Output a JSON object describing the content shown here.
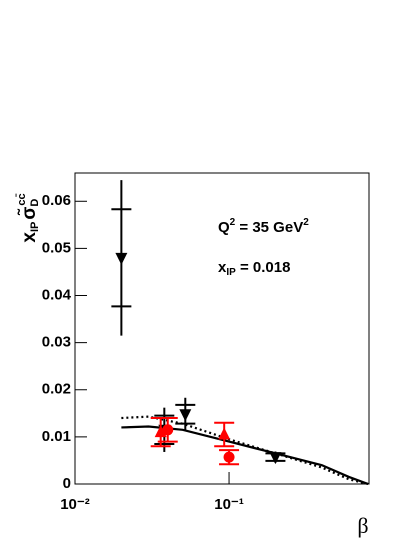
{
  "chart_data": {
    "type": "scatter",
    "xlabel": "β",
    "ylabel": [
      "x",
      "IP",
      "σ̃",
      "D",
      "cc̄"
    ],
    "annotations": [
      [
        "Q",
        "2",
        " = 35 GeV",
        "2"
      ],
      [
        "x",
        "IP",
        " = 0.018"
      ]
    ],
    "log_x": true,
    "xlim": [
      0.01,
      0.81
    ],
    "xticks": [
      {
        "value": 0.01,
        "label": "10⁻²"
      },
      {
        "value": 0.1,
        "label": "10⁻¹"
      }
    ],
    "ylim": [
      0,
      0.066
    ],
    "yticks": [
      0,
      0.01,
      0.02,
      0.03,
      0.04,
      0.05,
      0.06
    ],
    "series": [
      {
        "color": "#000000",
        "marker": "triangle-down",
        "x": [
          0.02,
          0.038,
          0.052,
          0.2
        ],
        "values": [
          0.048,
          0.0115,
          0.0148,
          0.0057
        ],
        "err_stat": [
          0.0103,
          0.003,
          0.002,
          0.0008
        ],
        "err_tot": [
          0.0165,
          0.0047,
          0.0035,
          0.0012
        ]
      },
      {
        "color": "#ff0000",
        "marker": "triangle-up",
        "x": [
          0.036,
          0.093
        ],
        "values": [
          0.011,
          0.0105
        ],
        "err_stat": [
          0.003,
          0.0025
        ],
        "err_tot": [
          0.003,
          0.0025
        ]
      },
      {
        "color": "#ff0000",
        "marker": "circle",
        "x": [
          0.04,
          0.1
        ],
        "values": [
          0.0115,
          0.0057
        ],
        "err_stat": [
          0.0025,
          0.0015
        ],
        "err_tot": [
          0.0025,
          0.0015
        ]
      }
    ],
    "curves": [
      {
        "color": "#000000",
        "style": "solid",
        "x": [
          0.02,
          0.03,
          0.05,
          0.1,
          0.2,
          0.4,
          0.6,
          0.8
        ],
        "values": [
          0.012,
          0.0122,
          0.0115,
          0.009,
          0.0065,
          0.004,
          0.0015,
          0
        ]
      },
      {
        "color": "#000000",
        "style": "dotted",
        "x": [
          0.02,
          0.03,
          0.05,
          0.1,
          0.2,
          0.4,
          0.6,
          0.8
        ],
        "values": [
          0.014,
          0.0143,
          0.0128,
          0.0095,
          0.0065,
          0.0035,
          0.001,
          0
        ]
      }
    ]
  }
}
